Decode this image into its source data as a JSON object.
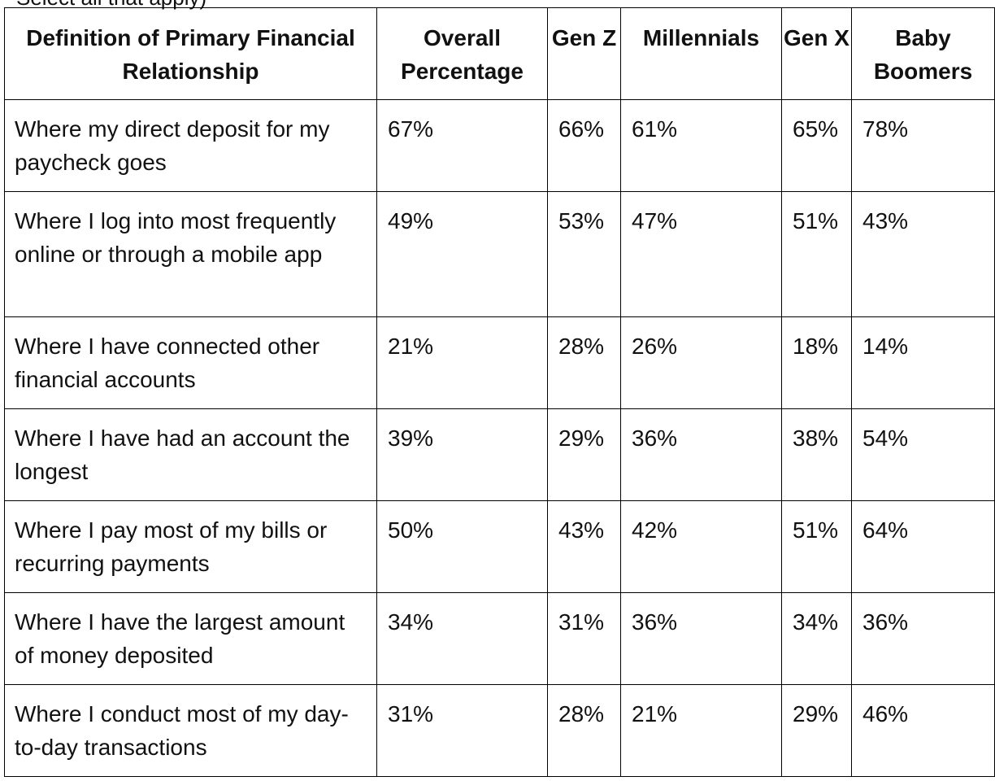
{
  "partial_top_text": "Select all that apply)",
  "table": {
    "headers": [
      "Definition of Primary Financial Relationship",
      "Overall Percentage",
      "Gen Z",
      "Millennials",
      "Gen X",
      "Baby Boomers"
    ],
    "rows": [
      [
        "Where my direct deposit for my paycheck goes",
        "67%",
        "66%",
        "61%",
        "65%",
        "78%"
      ],
      [
        "Where I log into most frequently online or through a mobile app",
        "49%",
        "53%",
        "47%",
        "51%",
        "43%"
      ],
      [
        "Where I have connected other financial accounts",
        "21%",
        "28%",
        "26%",
        "18%",
        "14%"
      ],
      [
        "Where I have had an account the longest",
        "39%",
        "29%",
        "36%",
        "38%",
        "54%"
      ],
      [
        "Where I pay most of my bills or recurring payments",
        "50%",
        "43%",
        "42%",
        "51%",
        "64%"
      ],
      [
        "Where I have the largest amount of money deposited",
        "34%",
        "31%",
        "36%",
        "34%",
        "36%"
      ],
      [
        "Where I conduct most of my day-to-day transactions",
        "31%",
        "28%",
        "21%",
        "29%",
        "46%"
      ]
    ]
  }
}
